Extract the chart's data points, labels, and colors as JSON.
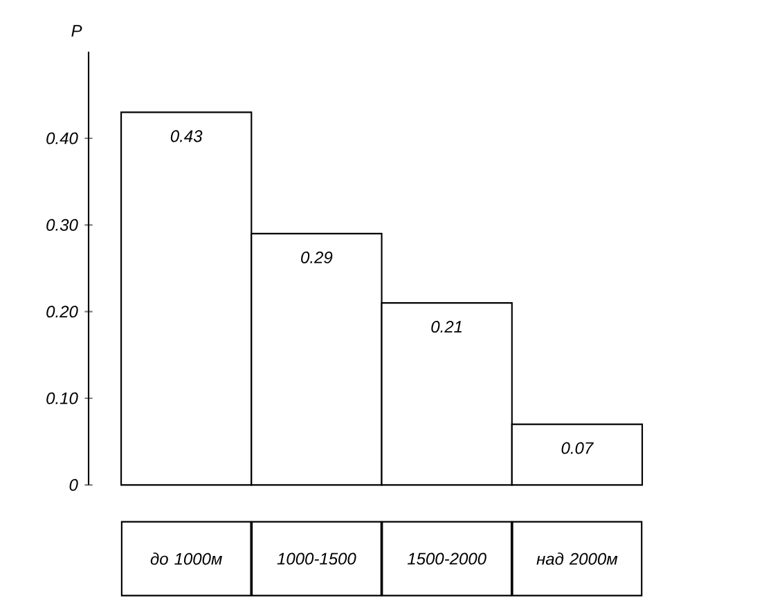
{
  "chart_data": {
    "type": "bar",
    "ylabel": "P",
    "categories": [
      "до 1000м",
      "1000-1500",
      "1500-2000",
      "над 2000м"
    ],
    "values": [
      0.43,
      0.29,
      0.21,
      0.07
    ],
    "color": "#ffffff",
    "ylim": [
      0,
      0.5
    ],
    "yticks": [
      0,
      {
        "value": 0.1,
        "label": "0.10"
      },
      {
        "value": 0.2,
        "label": "0.20"
      },
      {
        "value": 0.3,
        "label": "0.30"
      },
      {
        "value": 0.4,
        "label": "0.40"
      }
    ],
    "data_labels": true,
    "grid": false
  }
}
